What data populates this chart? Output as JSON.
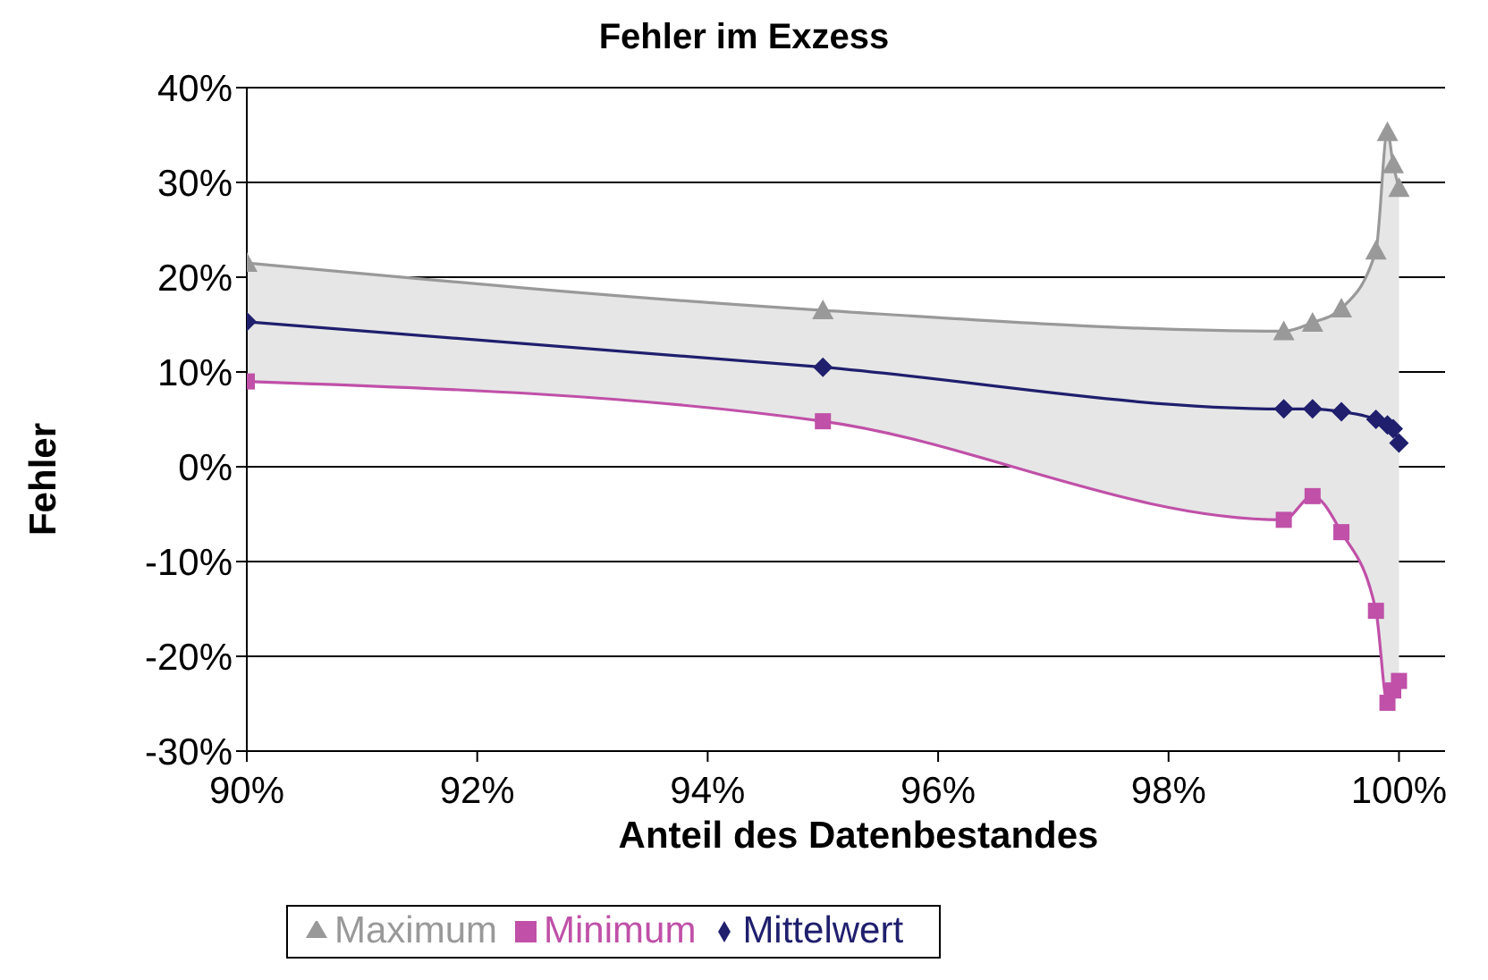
{
  "chart_data": {
    "type": "line",
    "title": "Fehler im Exzess",
    "xlabel": "Anteil des Datenbestandes",
    "ylabel": "Fehler",
    "x": [
      90,
      95,
      99,
      99.25,
      99.5,
      99.8,
      99.9,
      99.95,
      100
    ],
    "series": [
      {
        "name": "Mittelwert",
        "color": "#1f1f6e",
        "marker": "diamond",
        "values": [
          15.3,
          10.5,
          6.1,
          6.1,
          5.8,
          5.0,
          4.4,
          4.0,
          2.5
        ],
        "lower": [
          9,
          4.8,
          -5.6,
          -3.1,
          -6.9,
          -15.2,
          -24.9,
          -23.6,
          -22.6
        ],
        "upper": [
          21.5,
          16.5,
          14.3,
          15.2,
          16.7,
          22.8,
          35.3,
          31.9,
          29.4
        ]
      },
      {
        "name": "Minimum",
        "color": "#c050a8",
        "marker": "square",
        "values": [
          9,
          4.8,
          -5.6,
          -3.1,
          -6.9,
          -15.2,
          -24.9,
          -23.6,
          -22.6
        ]
      },
      {
        "name": "Maximum",
        "color": "#999999",
        "marker": "triangle",
        "values": [
          21.5,
          16.5,
          14.3,
          15.2,
          16.7,
          22.8,
          35.3,
          31.9,
          29.4
        ]
      }
    ],
    "xlim": [
      90,
      100.4
    ],
    "xticks": [
      {
        "value": 90,
        "label": "90%"
      },
      {
        "value": 92,
        "label": "92%"
      },
      {
        "value": 94,
        "label": "94%"
      },
      {
        "value": 96,
        "label": "96%"
      },
      {
        "value": 98,
        "label": "98%"
      },
      {
        "value": 100,
        "label": "100%"
      }
    ],
    "ylim": [
      -30,
      40
    ],
    "yticks": [
      {
        "value": -30,
        "label": "-30%"
      },
      {
        "value": -20,
        "label": "-20%"
      },
      {
        "value": -10,
        "label": "-10%"
      },
      {
        "value": 0,
        "label": "0%"
      },
      {
        "value": 10,
        "label": "10%"
      },
      {
        "value": 20,
        "label": "20%"
      },
      {
        "value": 30,
        "label": "30%"
      },
      {
        "value": 40,
        "label": "40%"
      }
    ],
    "grid": "y",
    "legend": "bottom",
    "line_style": "solid"
  }
}
